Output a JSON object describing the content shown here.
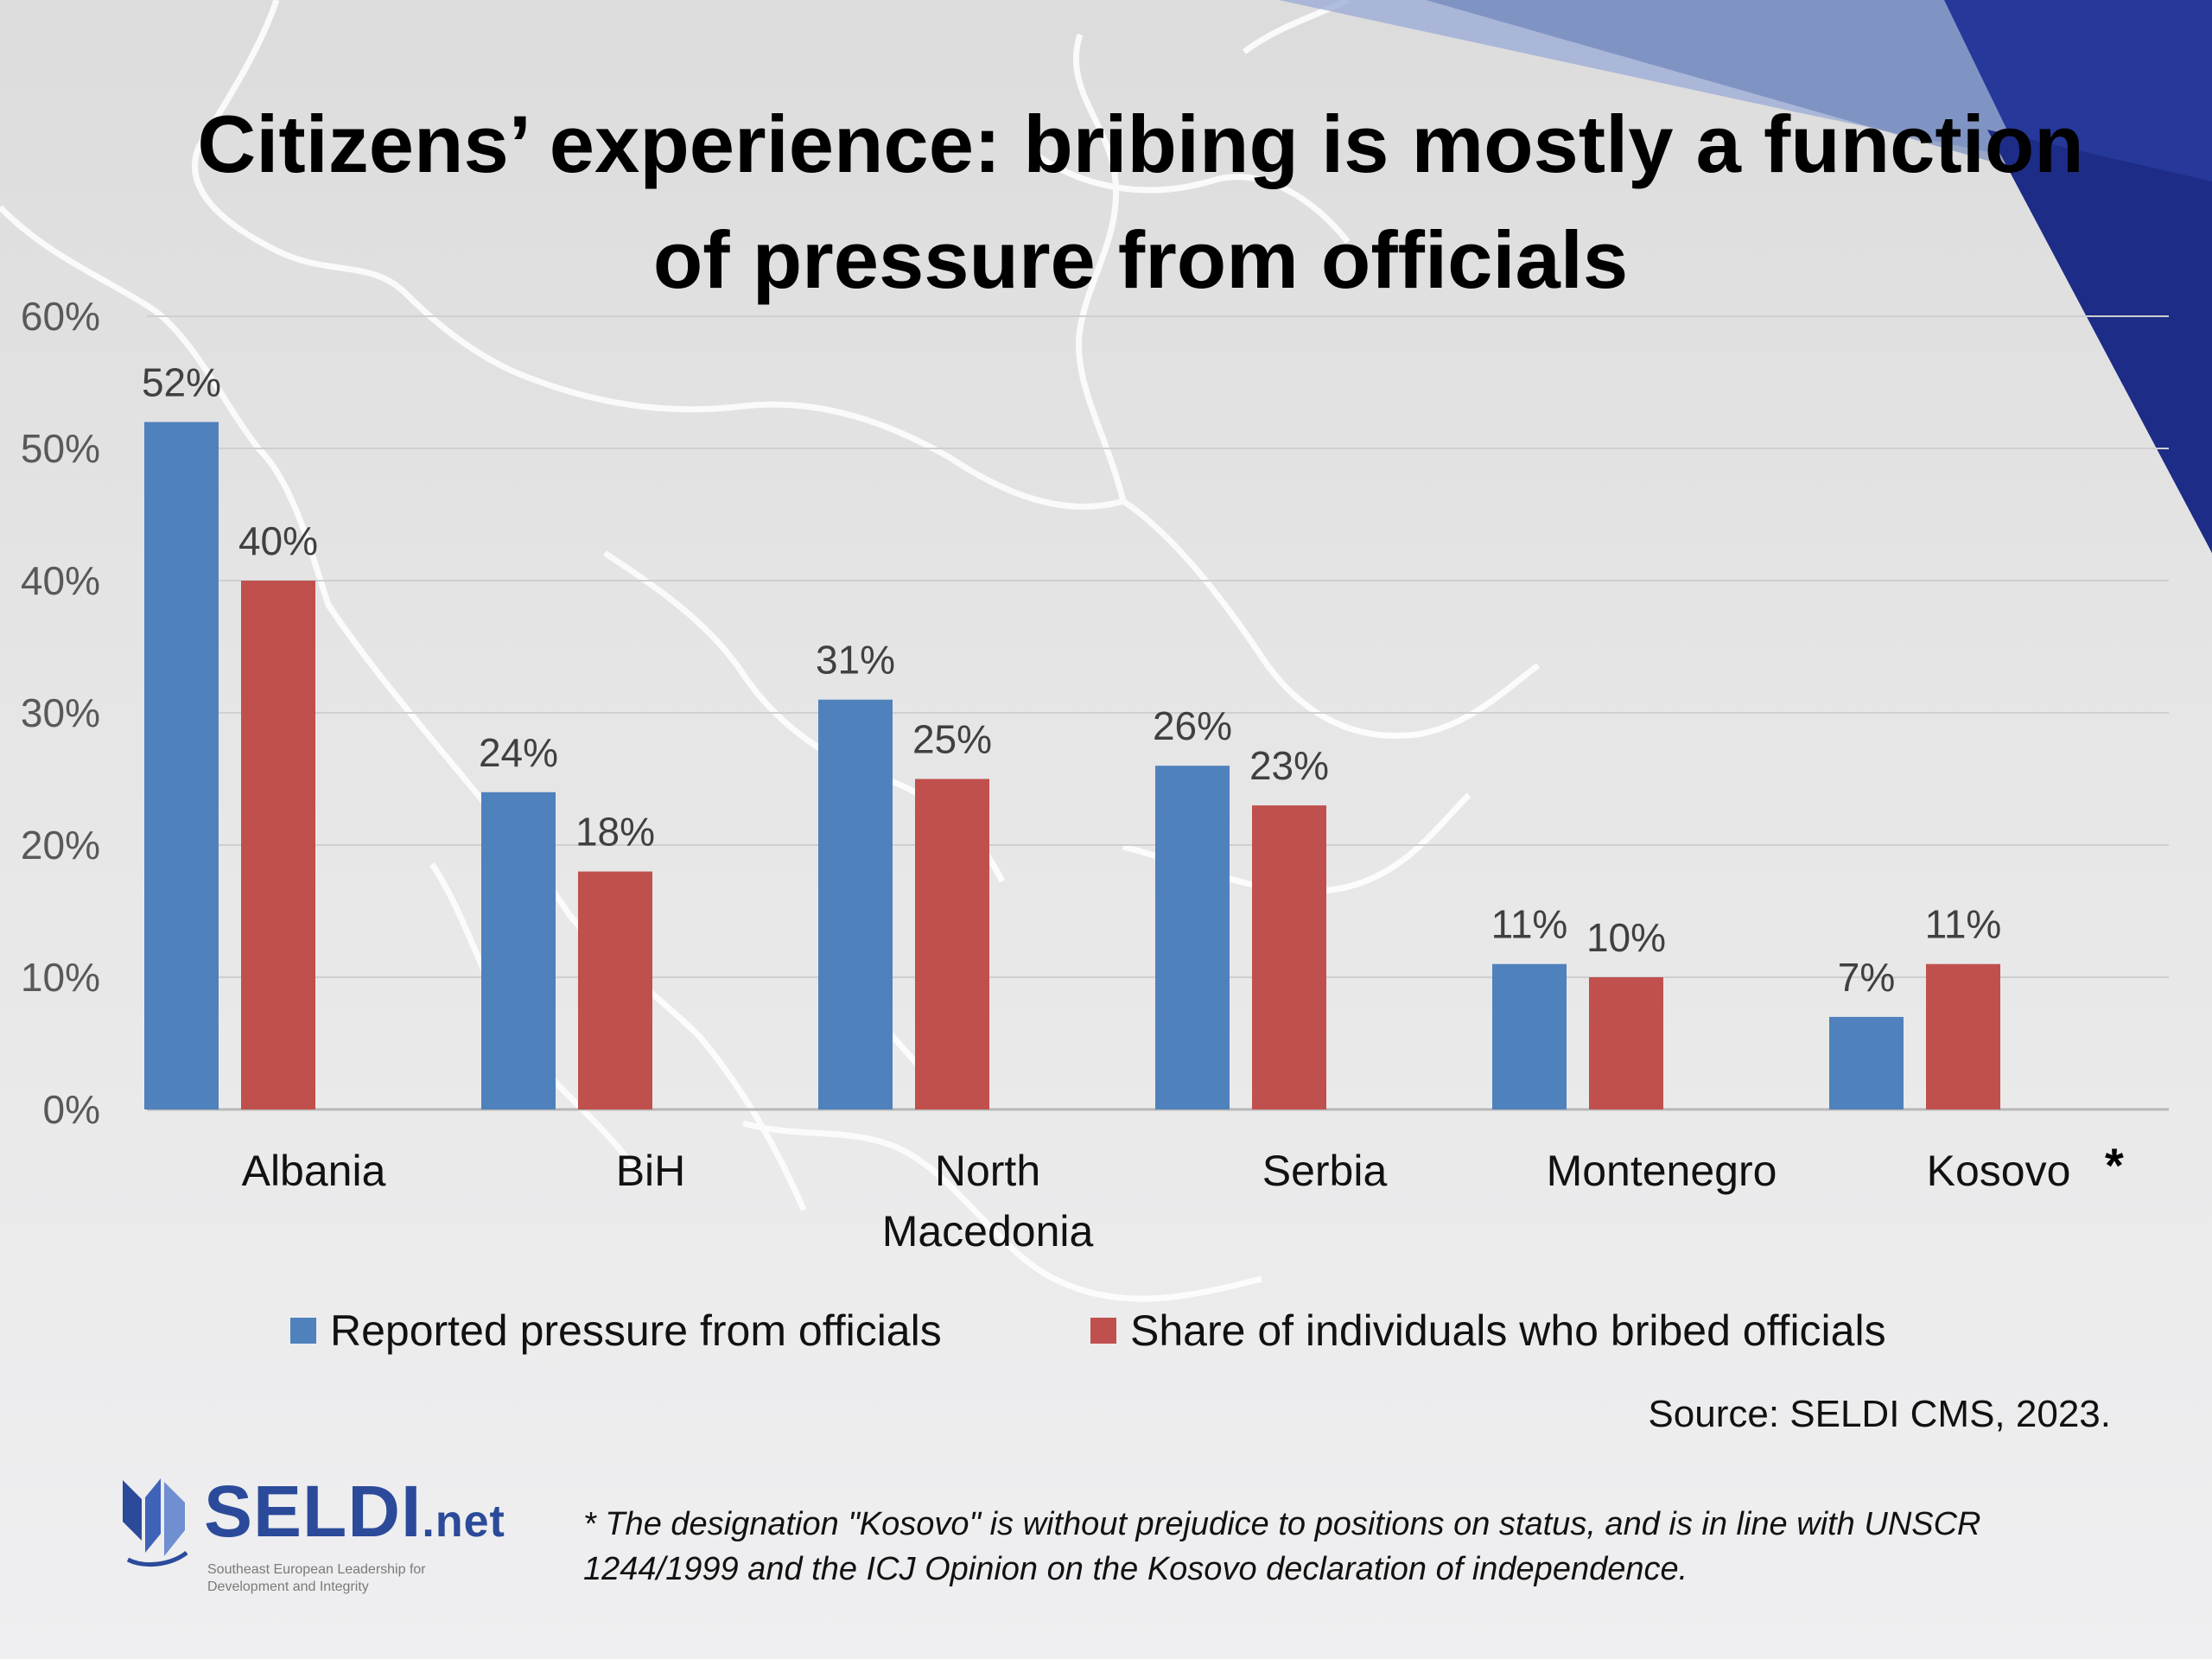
{
  "slide": {
    "title": "Citizens’ experience: bribing is mostly a function of pressure from officials",
    "source": "Source: SELDI CMS, 2023.",
    "footnote": "* The designation \"Kosovo\" is without prejudice to positions on status, and is in line with UNSCR 1244/1999 and the ICJ Opinion on the Kosovo declaration of independence.",
    "logo": {
      "name": "SELDI",
      "suffix": ".net",
      "tagline": "Southeast European Leadership for Development and Integrity"
    },
    "kosovo_marker": "*"
  },
  "colors": {
    "series_blue": "#4f81bd",
    "series_red": "#c0504d",
    "accent_navy": "#26389a"
  },
  "chart_data": {
    "type": "bar",
    "categories": [
      "Albania",
      "BiH",
      "North Macedonia",
      "Serbia",
      "Montenegro",
      "Kosovo"
    ],
    "series": [
      {
        "name": "Reported pressure from officials",
        "values": [
          52,
          24,
          31,
          26,
          11,
          7
        ],
        "labels": [
          "52%",
          "24%",
          "31%",
          "26%",
          "11%",
          "7%"
        ],
        "color": "#4f81bd"
      },
      {
        "name": "Share of individuals who bribed officials",
        "values": [
          40,
          18,
          25,
          23,
          10,
          11
        ],
        "labels": [
          "40%",
          "18%",
          "25%",
          "23%",
          "10%",
          "11%"
        ],
        "color": "#c0504d"
      }
    ],
    "ylim": [
      0,
      60
    ],
    "yticks": [
      "0%",
      "10%",
      "20%",
      "30%",
      "40%",
      "50%",
      "60%"
    ],
    "grid": true,
    "legend": "bottom",
    "xlabel": "",
    "ylabel": ""
  }
}
